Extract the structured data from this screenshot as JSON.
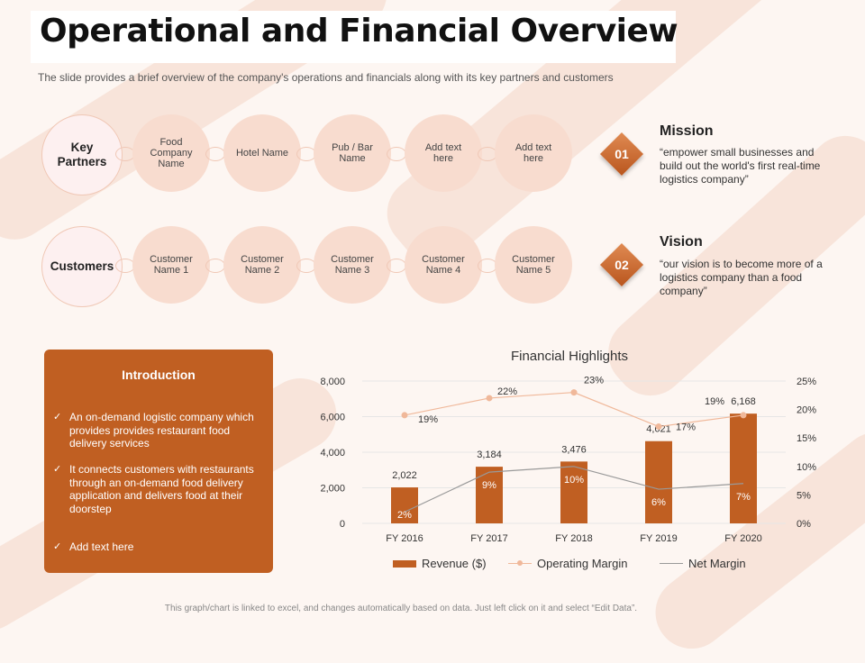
{
  "header": {
    "title": "Operational and Financial Overview",
    "subtitle": "The slide provides a brief overview of the company's operations and financials along with its key partners and customers"
  },
  "partners": {
    "label": "Key Partners",
    "items": [
      "Food Company Name",
      "Hotel Name",
      "Pub / Bar Name",
      "Add text here",
      "Add text here"
    ]
  },
  "customers": {
    "label": "Customers",
    "items": [
      "Customer Name 1",
      "Customer Name 2",
      "Customer Name 3",
      "Customer Name 4",
      "Customer Name 5"
    ]
  },
  "mission": {
    "number": "01",
    "title": "Mission",
    "text": "“empower small businesses and build out the world's first real-time logistics company”"
  },
  "vision": {
    "number": "02",
    "title": "Vision",
    "text": "“our vision is to become more of a logistics company than a food company”"
  },
  "intro": {
    "title": "Introduction",
    "check_icon": "check-icon",
    "items": [
      "An on-demand logistic company which provides provides restaurant food delivery services",
      "It connects customers with restaurants through an on-demand food delivery application and delivers food at their doorstep",
      "Add text here"
    ]
  },
  "colors": {
    "accent": "#c05f22",
    "operating_margin": "#f0b89a",
    "net_margin": "#999999",
    "bubble": "#f8dccf"
  },
  "chart_data": {
    "type": "bar",
    "title": "Financial Highlights",
    "categories": [
      "FY 2016",
      "FY 2017",
      "FY 2018",
      "FY 2019",
      "FY 2020"
    ],
    "series": [
      {
        "name": "Revenue ($)",
        "type": "bar",
        "axis": "left",
        "values": [
          2022,
          3184,
          3476,
          4621,
          6168
        ],
        "labels": [
          "2,022",
          "3,184",
          "3,476",
          "4,621",
          "6,168"
        ]
      },
      {
        "name": "Operating Margin",
        "type": "line",
        "axis": "right",
        "values": [
          19,
          22,
          23,
          17,
          19
        ],
        "labels": [
          "19%",
          "22%",
          "23%",
          "17%",
          "19%"
        ]
      },
      {
        "name": "Net Margin",
        "type": "line",
        "axis": "right",
        "values": [
          2,
          9,
          10,
          6,
          7
        ],
        "labels": [
          "2%",
          "9%",
          "10%",
          "6%",
          "7%"
        ]
      }
    ],
    "y_left": {
      "ylim": [
        0,
        8000
      ],
      "ticks": [
        "0",
        "2,000",
        "4,000",
        "6,000",
        "8,000"
      ]
    },
    "y_right": {
      "ylim": [
        0,
        25
      ],
      "ticks": [
        "0%",
        "5%",
        "10%",
        "15%",
        "20%",
        "25%"
      ]
    },
    "grid": true,
    "legend": "bottom"
  },
  "footer": {
    "note": "This graph/chart is linked to excel, and changes automatically based on data. Just left click on it and select “Edit Data”."
  }
}
